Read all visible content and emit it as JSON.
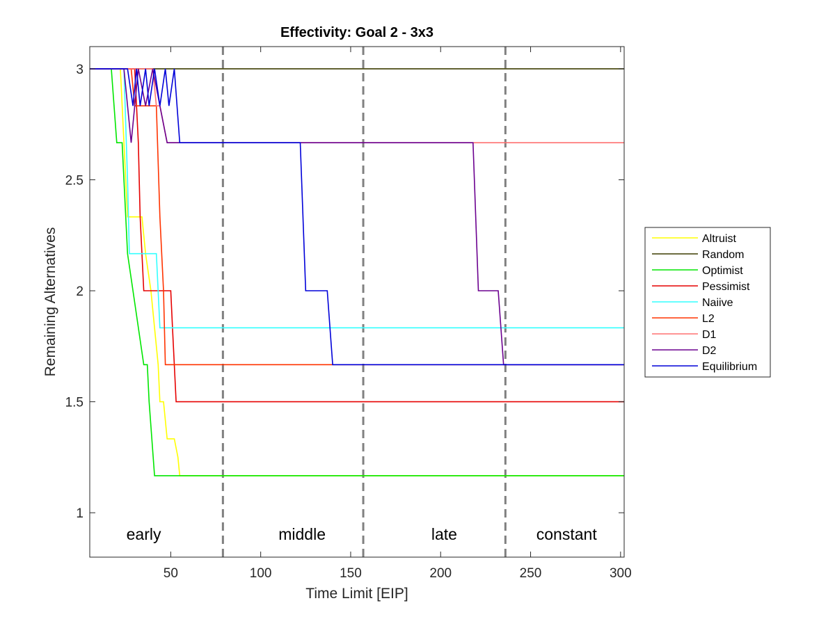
{
  "chart_data": {
    "type": "line",
    "title": "Effectivity: Goal 2 - 3x3",
    "xlabel": "Time Limit [EIP]",
    "ylabel": "Remaining Alternatives",
    "xlim": [
      5,
      302
    ],
    "ylim": [
      0.8,
      3.1
    ],
    "xticks": [
      50,
      100,
      150,
      200,
      250,
      300
    ],
    "xtick_labels": [
      "50",
      "100",
      "150",
      "200",
      "250",
      "300"
    ],
    "yticks": [
      1,
      1.5,
      2,
      2.5,
      3
    ],
    "ytick_labels": [
      "1",
      "1.5",
      "2",
      "2.5",
      "3"
    ],
    "grid": false,
    "legend_placement": "outside-right",
    "phase_boundaries": [
      79,
      157,
      236
    ],
    "phase_labels": [
      {
        "text": "early",
        "x": 35
      },
      {
        "text": "middle",
        "x": 123
      },
      {
        "text": "late",
        "x": 202
      },
      {
        "text": "constant",
        "x": 270
      }
    ],
    "series": [
      {
        "name": "Altruist",
        "color": "#ffff00",
        "x": [
          5,
          22,
          24,
          26,
          34,
          36,
          39,
          41,
          43,
          44,
          46,
          48,
          50,
          52,
          54,
          55,
          302
        ],
        "y": [
          3,
          3,
          2.667,
          2.333,
          2.333,
          2.167,
          2.0,
          1.833,
          1.667,
          1.5,
          1.5,
          1.333,
          1.333,
          1.333,
          1.25,
          1.167,
          1.167
        ]
      },
      {
        "name": "Random",
        "color": "#3d3d00",
        "x": [
          5,
          302
        ],
        "y": [
          3,
          3
        ]
      },
      {
        "name": "Optimist",
        "color": "#00e600",
        "x": [
          5,
          17,
          20,
          23,
          26,
          29,
          35,
          37,
          38,
          41,
          302
        ],
        "y": [
          3,
          3,
          2.667,
          2.667,
          2.167,
          2.0,
          1.667,
          1.667,
          1.5,
          1.167,
          1.167
        ]
      },
      {
        "name": "Pessimist",
        "color": "#e60000",
        "x": [
          5,
          30,
          32,
          33,
          35,
          50,
          51,
          53,
          302
        ],
        "y": [
          3,
          3,
          2.667,
          2.333,
          2.0,
          2.0,
          1.833,
          1.5,
          1.5
        ]
      },
      {
        "name": "Naiive",
        "color": "#33ffff",
        "x": [
          5,
          24,
          26,
          27,
          42,
          44,
          302
        ],
        "y": [
          3,
          3,
          2.5,
          2.167,
          2.167,
          1.833,
          1.833
        ]
      },
      {
        "name": "L2",
        "color": "#ff3300",
        "x": [
          5,
          28,
          30,
          31,
          42,
          44,
          46,
          47,
          140,
          302
        ],
        "y": [
          3,
          3,
          2.833,
          2.833,
          2.833,
          2.333,
          2.0,
          1.667,
          1.667,
          1.667
        ]
      },
      {
        "name": "D1",
        "color": "#ff7070",
        "x": [
          5,
          40,
          42,
          44,
          48,
          52,
          56,
          58,
          302
        ],
        "y": [
          3,
          3,
          2.833,
          2.833,
          2.667,
          2.667,
          2.667,
          2.667,
          2.667
        ]
      },
      {
        "name": "D2",
        "color": "#6b008f",
        "x": [
          5,
          24,
          28,
          32,
          36,
          40,
          44,
          48,
          52,
          56,
          218,
          221,
          232,
          235,
          236,
          302
        ],
        "y": [
          3,
          3,
          2.667,
          3,
          2.833,
          3,
          2.833,
          2.667,
          2.667,
          2.667,
          2.667,
          2.0,
          2.0,
          1.667,
          1.667,
          1.667
        ]
      },
      {
        "name": "Equilibrium",
        "color": "#0000d9",
        "x": [
          5,
          26,
          29,
          31,
          33,
          36,
          38,
          41,
          44,
          47,
          49,
          52,
          55,
          57,
          60,
          122,
          125,
          137,
          140,
          302
        ],
        "y": [
          3,
          3,
          2.833,
          3,
          2.833,
          3,
          2.833,
          3,
          2.833,
          3,
          2.833,
          3,
          2.667,
          2.667,
          2.667,
          2.667,
          2.0,
          2.0,
          1.667,
          1.667
        ]
      }
    ]
  }
}
